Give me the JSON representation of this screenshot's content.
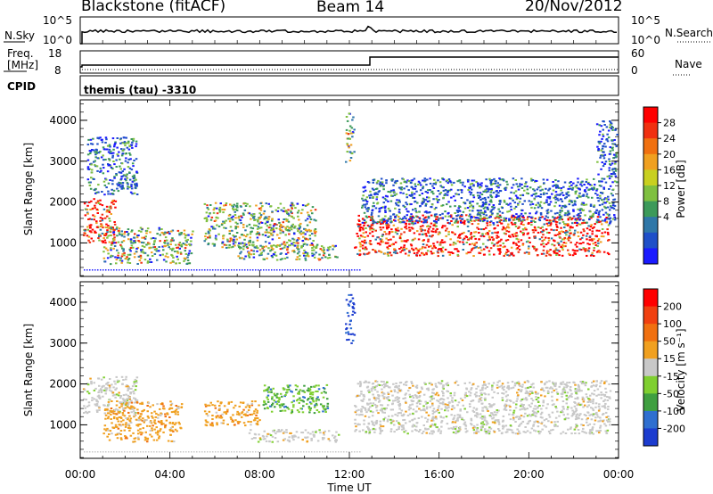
{
  "header": {
    "station": "Blackstone (fitACF)",
    "beam": "Beam 14",
    "date": "20/Nov/2012"
  },
  "top_panels": {
    "noise": {
      "left_label": "N.Sky",
      "right_label": "N.Search",
      "left_ticks": [
        "10^5",
        "10^0"
      ],
      "right_ticks": [
        "10^5",
        "10^0"
      ]
    },
    "freq": {
      "left_label_1": "Freq.",
      "left_label_2": "[MHz]",
      "left_ticks": [
        "18",
        "8"
      ],
      "right_label": "Nave",
      "right_ticks": [
        "60",
        "0"
      ]
    },
    "cpid": {
      "label": "CPID",
      "program": "themis (tau) -3310"
    }
  },
  "chart_data": [
    {
      "type": "heatmap",
      "name": "power",
      "ylabel": "Slant Range [km]",
      "xlabel": "",
      "x_ticks": [
        "00:00",
        "04:00",
        "08:00",
        "12:00",
        "16:00",
        "20:00",
        "00:00"
      ],
      "x_range_hours": [
        0,
        24
      ],
      "y_ticks": [
        1000,
        2000,
        3000,
        4000
      ],
      "y_range_km": [
        180,
        4500
      ],
      "colorbar": {
        "label": "Power [dB]",
        "ticks": [
          "28",
          "24",
          "20",
          "16",
          "12",
          "8",
          "4"
        ],
        "range": [
          0,
          32
        ],
        "colors": [
          "#1a1aff",
          "#1f4fc8",
          "#2f77a8",
          "#3c9a5a",
          "#7fc040",
          "#c8d020",
          "#f0a020",
          "#f07010",
          "#f03010",
          "#ff0000"
        ]
      },
      "regions": [
        {
          "t0": 0.1,
          "t1": 1.6,
          "r0": 1000,
          "r1": 2100,
          "level": "strong"
        },
        {
          "t0": 0.3,
          "t1": 2.5,
          "r0": 2200,
          "r1": 3600,
          "level": "weak"
        },
        {
          "t0": 1.0,
          "t1": 5.0,
          "r0": 500,
          "r1": 1400,
          "level": "medium"
        },
        {
          "t0": 5.5,
          "t1": 10.5,
          "r0": 900,
          "r1": 2000,
          "level": "medium"
        },
        {
          "t0": 7.0,
          "t1": 11.5,
          "r0": 600,
          "r1": 1000,
          "level": "medium"
        },
        {
          "t0": 11.8,
          "t1": 12.2,
          "r0": 3000,
          "r1": 4200,
          "level": "medium"
        },
        {
          "t0": 12.2,
          "t1": 23.6,
          "r0": 700,
          "r1": 1700,
          "level": "strong"
        },
        {
          "t0": 12.5,
          "t1": 23.8,
          "r0": 1500,
          "r1": 2600,
          "level": "weak"
        },
        {
          "t0": 23.0,
          "t1": 23.9,
          "r0": 2500,
          "r1": 4000,
          "level": "weak"
        }
      ]
    },
    {
      "type": "heatmap",
      "name": "velocity",
      "ylabel": "Slant Range [km]",
      "xlabel": "Time UT",
      "x_ticks": [
        "00:00",
        "04:00",
        "08:00",
        "12:00",
        "16:00",
        "20:00",
        "00:00"
      ],
      "x_range_hours": [
        0,
        24
      ],
      "y_ticks": [
        1000,
        2000,
        3000,
        4000
      ],
      "y_range_km": [
        180,
        4500
      ],
      "colorbar": {
        "label": "Velocity [m s⁻¹]",
        "ticks": [
          "200",
          "100",
          "50",
          "15",
          "-15",
          "-50",
          "-100",
          "-200"
        ],
        "colors": [
          "#1c3ccf",
          "#2f6fd0",
          "#3f9f40",
          "#7fcf30",
          "#c8c8c8",
          "#f0a020",
          "#f07010",
          "#f04010",
          "#ff0000"
        ]
      },
      "regions": [
        {
          "t0": 0.1,
          "t1": 2.5,
          "r0": 1300,
          "r1": 2200,
          "kind": "grey"
        },
        {
          "t0": 1.0,
          "t1": 4.5,
          "r0": 600,
          "r1": 1600,
          "kind": "orange"
        },
        {
          "t0": 5.5,
          "t1": 8.0,
          "r0": 1000,
          "r1": 1600,
          "kind": "orange"
        },
        {
          "t0": 8.0,
          "t1": 11.0,
          "r0": 1300,
          "r1": 2000,
          "kind": "green"
        },
        {
          "t0": 7.5,
          "t1": 11.5,
          "r0": 600,
          "r1": 900,
          "kind": "grey"
        },
        {
          "t0": 12.2,
          "t1": 23.6,
          "r0": 800,
          "r1": 2100,
          "kind": "grey"
        },
        {
          "t0": 11.8,
          "t1": 12.2,
          "r0": 3000,
          "r1": 4200,
          "kind": "blue"
        }
      ]
    }
  ]
}
